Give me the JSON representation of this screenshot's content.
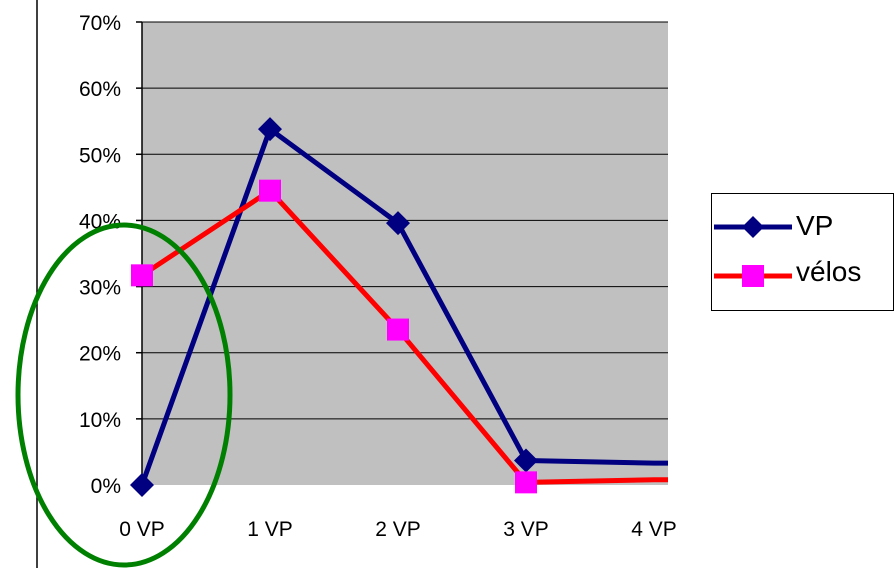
{
  "chart_data": {
    "type": "line",
    "categories": [
      "0 VP",
      "1 VP",
      "2 VP",
      "3 VP",
      "4 VP"
    ],
    "y_ticks": [
      "0%",
      "10%",
      "20%",
      "30%",
      "40%",
      "50%",
      "60%",
      "70%"
    ],
    "ylim": [
      0,
      70
    ],
    "grid": true,
    "legend_position": "right",
    "plot_background": "#c0c0c0",
    "series": [
      {
        "name": "VP",
        "color": "#000080",
        "marker": "diamond",
        "values": [
          0,
          53.8,
          39.6,
          3.7,
          3.3
        ]
      },
      {
        "name": "vélos",
        "color": "#ff0000",
        "marker_color": "#ff00ff",
        "marker": "square",
        "values": [
          31.7,
          44.5,
          23.5,
          0.4,
          0.8
        ]
      }
    ],
    "annotation": {
      "shape": "ellipse",
      "color": "#008000",
      "around": "0 VP"
    }
  }
}
